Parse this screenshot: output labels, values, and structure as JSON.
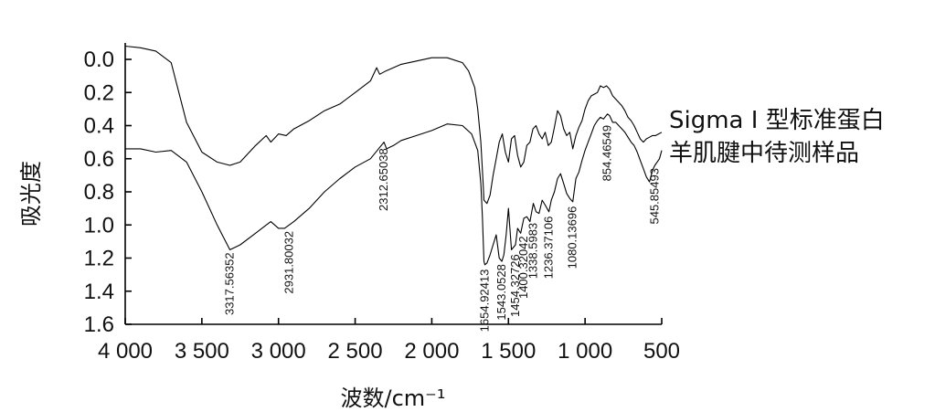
{
  "chart_data": {
    "type": "line",
    "xlabel": "波数/cm⁻¹",
    "ylabel": "吸光度",
    "xlim": [
      4000,
      500
    ],
    "ylim": [
      0.0,
      1.6
    ],
    "x_axis_reversed": true,
    "y_axis_inverted": true,
    "x_ticks": [
      4000,
      3500,
      3000,
      2500,
      2000,
      1500,
      1000,
      500
    ],
    "x_tick_labels": [
      "4 000",
      "3 500",
      "3 000",
      "2 500",
      "2 000",
      "1 500",
      "1 000",
      "500"
    ],
    "y_ticks": [
      0.0,
      0.2,
      0.4,
      0.6,
      0.8,
      1.0,
      1.2,
      1.4,
      1.6
    ],
    "y_tick_labels": [
      "0.0",
      "0.2",
      "0.4",
      "0.6",
      "0.8",
      "1.0",
      "1.2",
      "1.4",
      "1.6"
    ],
    "grid": false,
    "series": [
      {
        "name": "Sigma Ⅰ 型标准蛋白",
        "x": [
          4000,
          3900,
          3800,
          3700,
          3600,
          3500,
          3400,
          3317,
          3250,
          3150,
          3080,
          3050,
          3000,
          2950,
          2900,
          2800,
          2700,
          2600,
          2500,
          2400,
          2360,
          2340,
          2300,
          2200,
          2100,
          2000,
          1900,
          1800,
          1760,
          1720,
          1700,
          1680,
          1665,
          1660,
          1640,
          1620,
          1600,
          1580,
          1560,
          1540,
          1520,
          1500,
          1480,
          1460,
          1440,
          1420,
          1400,
          1380,
          1360,
          1340,
          1320,
          1300,
          1280,
          1260,
          1240,
          1220,
          1200,
          1180,
          1160,
          1140,
          1120,
          1100,
          1080,
          1060,
          1040,
          1020,
          1000,
          980,
          960,
          940,
          920,
          900,
          880,
          860,
          840,
          820,
          800,
          780,
          760,
          740,
          720,
          700,
          680,
          660,
          640,
          620,
          600,
          580,
          560,
          540,
          520,
          500
        ],
        "y": [
          -0.08,
          -0.07,
          -0.05,
          0.02,
          0.38,
          0.56,
          0.62,
          0.64,
          0.62,
          0.52,
          0.46,
          0.5,
          0.45,
          0.46,
          0.42,
          0.37,
          0.31,
          0.27,
          0.2,
          0.13,
          0.05,
          0.09,
          0.07,
          0.03,
          0.01,
          -0.01,
          -0.01,
          0.02,
          0.07,
          0.17,
          0.3,
          0.5,
          0.75,
          0.85,
          0.87,
          0.82,
          0.7,
          0.6,
          0.5,
          0.45,
          0.56,
          0.62,
          0.48,
          0.46,
          0.58,
          0.65,
          0.62,
          0.52,
          0.5,
          0.42,
          0.4,
          0.45,
          0.48,
          0.44,
          0.52,
          0.5,
          0.41,
          0.31,
          0.34,
          0.42,
          0.46,
          0.44,
          0.54,
          0.46,
          0.41,
          0.37,
          0.3,
          0.25,
          0.22,
          0.21,
          0.2,
          0.16,
          0.17,
          0.16,
          0.18,
          0.22,
          0.24,
          0.26,
          0.28,
          0.31,
          0.35,
          0.37,
          0.4,
          0.44,
          0.48,
          0.5,
          0.48,
          0.47,
          0.46,
          0.46,
          0.45,
          0.44
        ]
      },
      {
        "name": "羊肌腱中待测样品",
        "x": [
          4000,
          3900,
          3800,
          3700,
          3600,
          3500,
          3400,
          3317,
          3250,
          3150,
          3080,
          3050,
          3000,
          2960,
          2931,
          2900,
          2800,
          2700,
          2600,
          2500,
          2400,
          2330,
          2312,
          2295,
          2250,
          2200,
          2100,
          2000,
          1900,
          1800,
          1740,
          1700,
          1680,
          1670,
          1660,
          1654,
          1640,
          1620,
          1600,
          1580,
          1560,
          1543,
          1530,
          1515,
          1500,
          1480,
          1454,
          1440,
          1420,
          1400,
          1380,
          1360,
          1338,
          1320,
          1300,
          1280,
          1260,
          1236,
          1220,
          1200,
          1180,
          1160,
          1140,
          1120,
          1100,
          1080,
          1060,
          1040,
          1020,
          1000,
          980,
          960,
          940,
          920,
          900,
          880,
          854,
          840,
          820,
          800,
          780,
          760,
          740,
          720,
          700,
          680,
          660,
          640,
          620,
          600,
          580,
          560,
          545,
          530,
          515,
          500
        ],
        "y": [
          0.54,
          0.54,
          0.56,
          0.55,
          0.62,
          0.8,
          1.0,
          1.15,
          1.12,
          1.05,
          1.0,
          0.98,
          1.02,
          1.02,
          1.0,
          0.98,
          0.9,
          0.8,
          0.72,
          0.65,
          0.6,
          0.52,
          0.5,
          0.54,
          0.52,
          0.49,
          0.46,
          0.43,
          0.39,
          0.4,
          0.45,
          0.55,
          0.75,
          0.95,
          1.22,
          1.24,
          1.23,
          1.18,
          1.12,
          1.06,
          1.2,
          1.22,
          1.18,
          1.06,
          0.9,
          1.15,
          1.12,
          1.02,
          1.05,
          0.96,
          0.95,
          0.98,
          0.87,
          0.92,
          0.93,
          0.85,
          0.88,
          0.92,
          0.85,
          0.8,
          0.72,
          0.69,
          0.75,
          0.81,
          0.84,
          0.86,
          0.72,
          0.68,
          0.61,
          0.55,
          0.5,
          0.45,
          0.4,
          0.37,
          0.35,
          0.36,
          0.33,
          0.34,
          0.38,
          0.38,
          0.4,
          0.42,
          0.44,
          0.47,
          0.5,
          0.52,
          0.56,
          0.61,
          0.66,
          0.71,
          0.74,
          0.67,
          0.64,
          0.62,
          0.6,
          0.55
        ]
      }
    ],
    "peak_labels": [
      {
        "text": "3317.56352",
        "x": 3317,
        "y": 1.15
      },
      {
        "text": "2931.80032",
        "x": 2931,
        "y": 1.02
      },
      {
        "text": "2312.65038",
        "x": 2312,
        "y": 0.52
      },
      {
        "text": "1654.92413",
        "x": 1654,
        "y": 1.25
      },
      {
        "text": "1543.0528",
        "x": 1543,
        "y": 1.22
      },
      {
        "text": "1454.32726",
        "x": 1454,
        "y": 1.16
      },
      {
        "text": "1400.32042",
        "x": 1400,
        "y": 1.05
      },
      {
        "text": "1338.5983",
        "x": 1338,
        "y": 0.97
      },
      {
        "text": "1236.37106",
        "x": 1236,
        "y": 0.93
      },
      {
        "text": "1080.13696",
        "x": 1080,
        "y": 0.87
      },
      {
        "text": "854.46549",
        "x": 854,
        "y": 0.38
      },
      {
        "text": "545.85493",
        "x": 545,
        "y": 0.64
      }
    ]
  }
}
